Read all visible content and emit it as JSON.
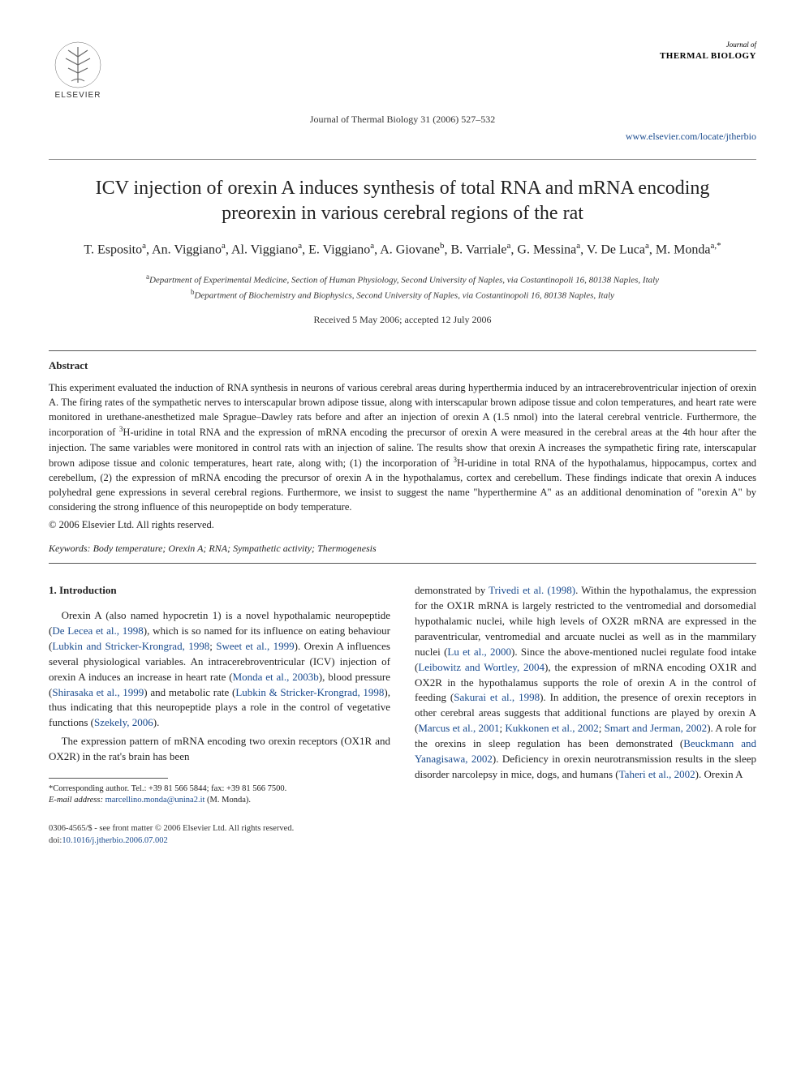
{
  "publisher_name": "ELSEVIER",
  "journal_header": {
    "line1": "Journal of",
    "line2": "THERMAL BIOLOGY"
  },
  "journal_reference": "Journal of Thermal Biology 31 (2006) 527–532",
  "journal_link": "www.elsevier.com/locate/jtherbio",
  "title": "ICV injection of orexin A induces synthesis of total RNA and mRNA encoding preorexin in various cerebral regions of the rat",
  "authors_html": "T. Esposito<sup>a</sup>, An. Viggiano<sup>a</sup>, Al. Viggiano<sup>a</sup>, E. Viggiano<sup>a</sup>, A. Giovane<sup>b</sup>, B. Varriale<sup>a</sup>, G. Messina<sup>a</sup>, V. De Luca<sup>a</sup>, M. Monda<sup>a,*</sup>",
  "affiliations": [
    {
      "sup": "a",
      "text": "Department of Experimental Medicine, Section of Human Physiology, Second University of Naples, via Costantinopoli 16, 80138 Naples, Italy"
    },
    {
      "sup": "b",
      "text": "Department of Biochemistry and Biophysics, Second University of Naples, via Costantinopoli 16, 80138 Naples, Italy"
    }
  ],
  "dates": "Received 5 May 2006; accepted 12 July 2006",
  "abstract_heading": "Abstract",
  "abstract_body": "This experiment evaluated the induction of RNA synthesis in neurons of various cerebral areas during hyperthermia induced by an intracerebroventricular injection of orexin A. The firing rates of the sympathetic nerves to interscapular brown adipose tissue, along with interscapular brown adipose tissue and colon temperatures, and heart rate were monitored in urethane-anesthetized male Sprague–Dawley rats before and after an injection of orexin A (1.5 nmol) into the lateral cerebral ventricle. Furthermore, the incorporation of <sup>3</sup>H-uridine in total RNA and the expression of mRNA encoding the precursor of orexin A were measured in the cerebral areas at the 4th hour after the injection. The same variables were monitored in control rats with an injection of saline. The results show that orexin A increases the sympathetic firing rate, interscapular brown adipose tissue and colonic temperatures, heart rate, along with; (1) the incorporation of <sup>3</sup>H-uridine in total RNA of the hypothalamus, hippocampus, cortex and cerebellum, (2) the expression of mRNA encoding the precursor of orexin A in the hypothalamus, cortex and cerebellum. These findings indicate that orexin A induces polyhedral gene expressions in several cerebral regions. Furthermore, we insist to suggest the name \"hyperthermine A\" as an additional denomination of \"orexin A\" by considering the strong influence of this neuropeptide on body temperature.",
  "copyright": "© 2006 Elsevier Ltd. All rights reserved.",
  "keywords_label": "Keywords:",
  "keywords": "Body temperature; Orexin A; RNA; Sympathetic activity; Thermogenesis",
  "intro_heading": "1. Introduction",
  "left_col_p1": "Orexin A (also named hypocretin 1) is a novel hypothalamic neuropeptide (<span class=\"ref\">De Lecea et al., 1998</span>), which is so named for its influence on eating behaviour (<span class=\"ref\">Lubkin and Stricker-Krongrad, 1998</span>; <span class=\"ref\">Sweet et al., 1999</span>). Orexin A influences several physiological variables. An intracerebroventricular (ICV) injection of orexin A induces an increase in heart rate (<span class=\"ref\">Monda et al., 2003b</span>), blood pressure (<span class=\"ref\">Shirasaka et al., 1999</span>) and metabolic rate (<span class=\"ref\">Lubkin & Stricker-Krongrad, 1998</span>), thus indicating that this neuropeptide plays a role in the control of vegetative functions (<span class=\"ref\">Szekely, 2006</span>).",
  "left_col_p2": "The expression pattern of mRNA encoding two orexin receptors (OX1R and OX2R) in the rat's brain has been",
  "right_col_p1": "demonstrated by <span class=\"ref\">Trivedi et al. (1998)</span>. Within the hypothalamus, the expression for the OX1R mRNA is largely restricted to the ventromedial and dorsomedial hypothalamic nuclei, while high levels of OX2R mRNA are expressed in the paraventricular, ventromedial and arcuate nuclei as well as in the mammilary nuclei (<span class=\"ref\">Lu et al., 2000</span>). Since the above-mentioned nuclei regulate food intake (<span class=\"ref\">Leibowitz and Wortley, 2004</span>), the expression of mRNA encoding OX1R and OX2R in the hypothalamus supports the role of orexin A in the control of feeding (<span class=\"ref\">Sakurai et al., 1998</span>). In addition, the presence of orexin receptors in other cerebral areas suggests that additional functions are played by orexin A (<span class=\"ref\">Marcus et al., 2001</span>; <span class=\"ref\">Kukkonen et al., 2002</span>; <span class=\"ref\">Smart and Jerman, 2002</span>). A role for the orexins in sleep regulation has been demonstrated (<span class=\"ref\">Beuckmann and Yanagisawa, 2002</span>). Deficiency in orexin neurotransmission results in the sleep disorder narcolepsy in mice, dogs, and humans (<span class=\"ref\">Taheri et al., 2002</span>). Orexin A",
  "footnote_corresponding": "*Corresponding author. Tel.: +39 81 566 5844; fax: +39 81 566 7500.",
  "footnote_email_label": "E-mail address:",
  "footnote_email": "marcellino.monda@unina2.it",
  "footnote_email_suffix": "(M. Monda).",
  "footer_line1": "0306-4565/$ - see front matter © 2006 Elsevier Ltd. All rights reserved.",
  "footer_doi_label": "doi:",
  "footer_doi": "10.1016/j.jtherbio.2006.07.002",
  "colors": {
    "link": "#1a4b8e",
    "text": "#222222",
    "background": "#ffffff",
    "page_bg": "#525659",
    "rule": "#555555"
  }
}
